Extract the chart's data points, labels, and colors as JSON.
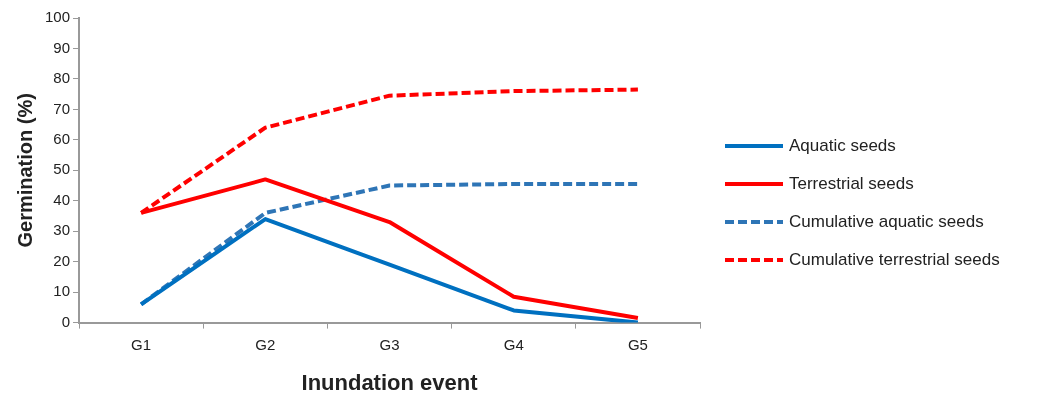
{
  "chart_data": {
    "type": "line",
    "xlabel": "Inundation event",
    "ylabel": "Germination (%)",
    "categories": [
      "G1",
      "G2",
      "G3",
      "G4",
      "G5"
    ],
    "series": [
      {
        "name": "Aquatic seeds",
        "color": "#0070c0",
        "values": [
          6,
          34,
          19,
          4,
          0
        ],
        "line_style": "solid"
      },
      {
        "name": "Terrestrial seeds",
        "color": "#ff0000",
        "values": [
          36,
          47,
          33,
          8.5,
          1.5
        ],
        "line_style": "solid"
      },
      {
        "name": "Cumulative aquatic seeds",
        "color": "#2e75b6",
        "values": [
          6,
          36,
          45,
          45.5,
          45.5
        ],
        "line_style": "dashed"
      },
      {
        "name": "Cumulative terrestrial seeds",
        "color": "#ff0000",
        "values": [
          36,
          64,
          74.5,
          76,
          76.5
        ],
        "line_style": "dashed"
      }
    ],
    "ylim": [
      0,
      100
    ],
    "yticks": [
      0,
      10,
      20,
      30,
      40,
      50,
      60,
      70,
      80,
      90,
      100
    ],
    "grid": false,
    "legend": "right",
    "marker": "none"
  }
}
